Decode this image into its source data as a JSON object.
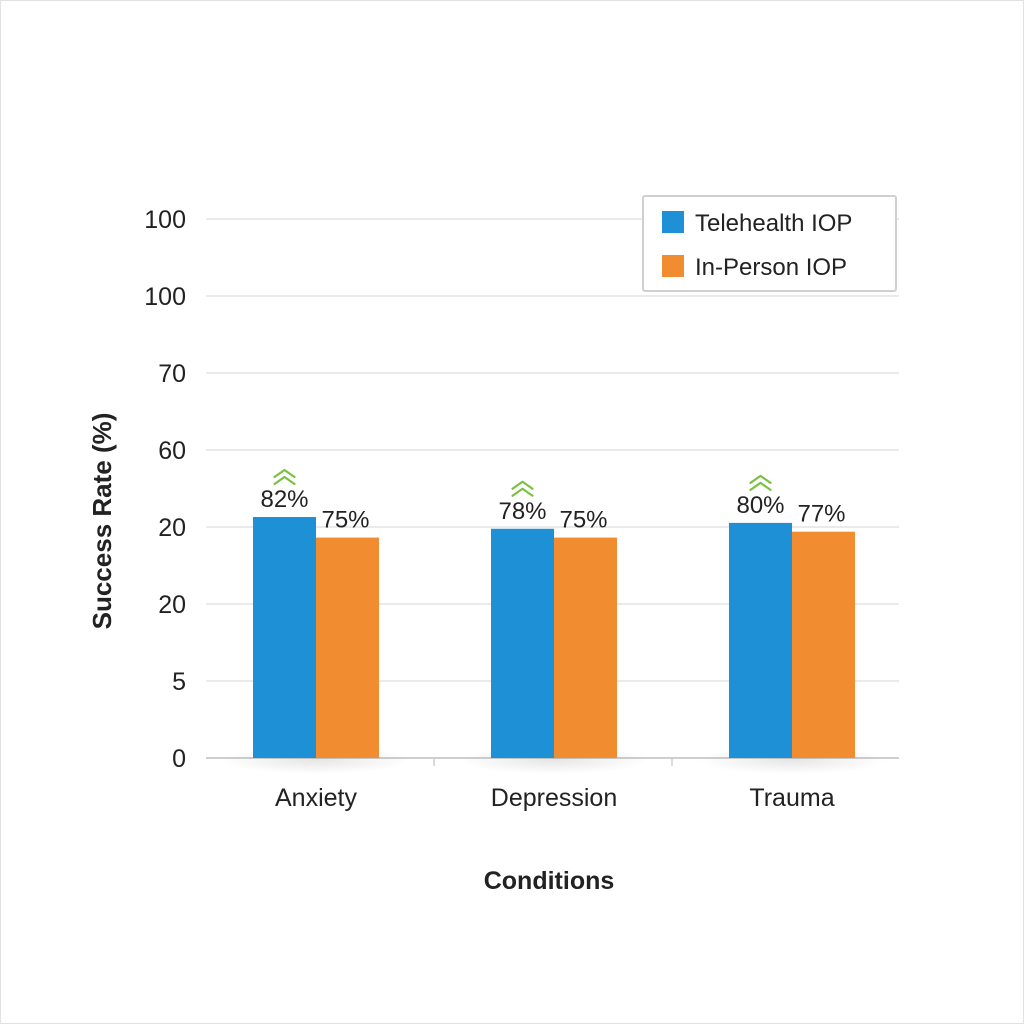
{
  "chart_data": {
    "type": "bar",
    "title": "",
    "xlabel": "Conditions",
    "ylabel": "Success Rate (%)",
    "categories": [
      "Anxiety",
      "Depression",
      "Trauma"
    ],
    "series": [
      {
        "name": "Telehealth IOP",
        "color": "#1e90d6",
        "values": [
          82,
          78,
          80
        ],
        "labels": [
          "82%",
          "78%",
          "80%"
        ],
        "trend": [
          "up-chevron-icon",
          "up-chevron-icon",
          "up-chevron-icon"
        ]
      },
      {
        "name": "In-Person IOP",
        "color": "#f28c30",
        "values": [
          75,
          75,
          77
        ],
        "labels": [
          "75%",
          "75%",
          "77%"
        ]
      }
    ],
    "ytick_labels": [
      "0",
      "5",
      "20",
      "20",
      "60",
      "70",
      "100",
      "100"
    ],
    "grid": true,
    "legend_position": "top-right",
    "trend_color": "#7ac142"
  }
}
